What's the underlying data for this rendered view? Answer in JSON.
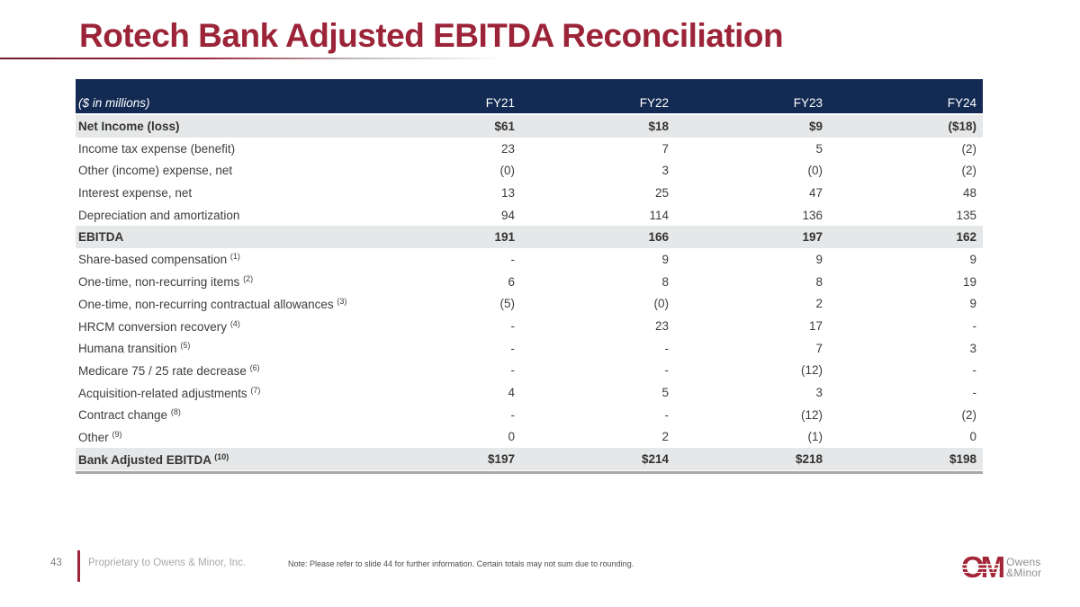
{
  "slide": {
    "title": "Rotech Bank Adjusted EBITDA Reconciliation",
    "page_number": "43",
    "proprietary": "Proprietary to Owens & Minor, Inc.",
    "note": "Note: Please refer to slide 44 for further information. Certain totals may not sum due to rounding.",
    "logo": {
      "mark": "OM",
      "line1": "Owens",
      "line2": "&Minor"
    }
  },
  "colors": {
    "title_maroon": "#9C2438",
    "header_navy": "#132A52",
    "row_gray": "#E6E7E8",
    "bottom_rule_gray": "#A8A8A8",
    "logo_red": "#A32638"
  },
  "table": {
    "unit_label": "($ in millions)",
    "columns": [
      "FY21",
      "FY22",
      "FY23",
      "FY24"
    ],
    "rows": [
      {
        "label": "Net Income (loss)",
        "footnote": "",
        "emphasis": true,
        "values": [
          "$61",
          "$18",
          "$9",
          "($18)"
        ]
      },
      {
        "label": "Income tax expense (benefit)",
        "footnote": "",
        "emphasis": false,
        "values": [
          "23",
          "7",
          "5",
          "(2)"
        ]
      },
      {
        "label": "Other (income) expense, net",
        "footnote": "",
        "emphasis": false,
        "values": [
          "(0)",
          "3",
          "(0)",
          "(2)"
        ]
      },
      {
        "label": "Interest expense, net",
        "footnote": "",
        "emphasis": false,
        "values": [
          "13",
          "25",
          "47",
          "48"
        ]
      },
      {
        "label": "Depreciation and amortization",
        "footnote": "",
        "emphasis": false,
        "values": [
          "94",
          "114",
          "136",
          "135"
        ]
      },
      {
        "label": "EBITDA",
        "footnote": "",
        "emphasis": true,
        "values": [
          "191",
          "166",
          "197",
          "162"
        ]
      },
      {
        "label": "Share-based compensation",
        "footnote": "(1)",
        "emphasis": false,
        "values": [
          "-",
          "9",
          "9",
          "9"
        ]
      },
      {
        "label": "One-time, non-recurring items",
        "footnote": "(2)",
        "emphasis": false,
        "values": [
          "6",
          "8",
          "8",
          "19"
        ]
      },
      {
        "label": "One-time, non-recurring contractual allowances",
        "footnote": "(3)",
        "emphasis": false,
        "values": [
          "(5)",
          "(0)",
          "2",
          "9"
        ]
      },
      {
        "label": "HRCM conversion recovery",
        "footnote": "(4)",
        "emphasis": false,
        "values": [
          "-",
          "23",
          "17",
          "-"
        ]
      },
      {
        "label": "Humana transition",
        "footnote": "(5)",
        "emphasis": false,
        "values": [
          "-",
          "-",
          "7",
          "3"
        ]
      },
      {
        "label": "Medicare 75 / 25 rate decrease",
        "footnote": "(6)",
        "emphasis": false,
        "values": [
          "-",
          "-",
          "(12)",
          "-"
        ]
      },
      {
        "label": "Acquisition-related adjustments",
        "footnote": "(7)",
        "emphasis": false,
        "values": [
          "4",
          "5",
          "3",
          "-"
        ]
      },
      {
        "label": "Contract change",
        "footnote": "(8)",
        "emphasis": false,
        "values": [
          "-",
          "-",
          "(12)",
          "(2)"
        ]
      },
      {
        "label": "Other",
        "footnote": "(9)",
        "emphasis": false,
        "values": [
          "0",
          "2",
          "(1)",
          "0"
        ]
      },
      {
        "label": "Bank Adjusted EBITDA",
        "footnote": "(10)",
        "emphasis": true,
        "values": [
          "$197",
          "$214",
          "$218",
          "$198"
        ]
      }
    ]
  }
}
